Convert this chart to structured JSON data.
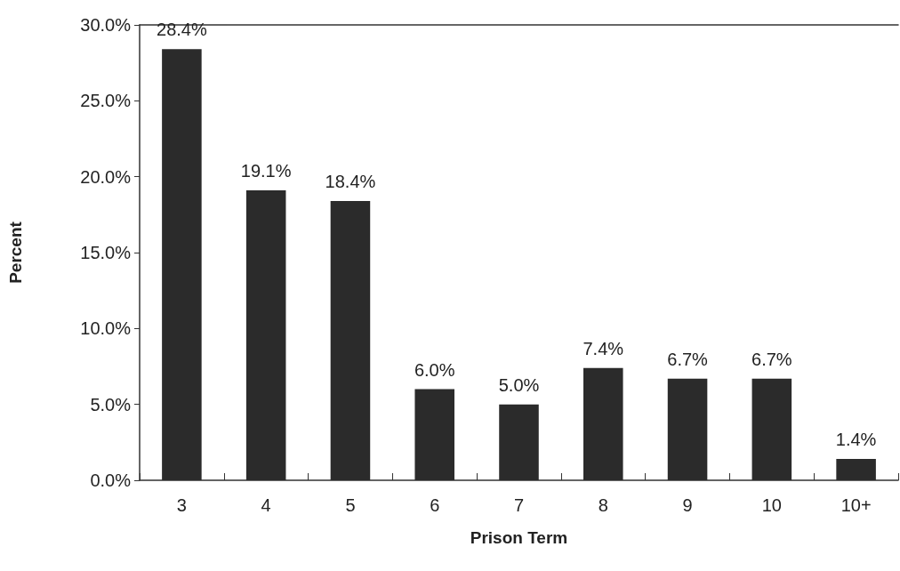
{
  "chart_data": {
    "type": "bar",
    "xlabel": "Prison Term",
    "ylabel": "Percent",
    "categories": [
      "3",
      "4",
      "5",
      "6",
      "7",
      "8",
      "9",
      "10",
      "10+"
    ],
    "values": [
      28.4,
      19.1,
      18.4,
      6.0,
      5.0,
      7.4,
      6.7,
      6.7,
      1.4
    ],
    "value_labels": [
      "28.4%",
      "19.1%",
      "18.4%",
      "6.0%",
      "5.0%",
      "7.4%",
      "6.7%",
      "6.7%",
      "1.4%"
    ],
    "color": "#2b2b2b",
    "ylim": [
      0,
      30
    ],
    "yticks": [
      {
        "value": 0,
        "label": "0.0%"
      },
      {
        "value": 5,
        "label": "5.0%"
      },
      {
        "value": 10,
        "label": "10.0%"
      },
      {
        "value": 15,
        "label": "15.0%"
      },
      {
        "value": 20,
        "label": "20.0%"
      },
      {
        "value": 25,
        "label": "25.0%"
      },
      {
        "value": 30,
        "label": "30.0%"
      }
    ],
    "grid": false
  }
}
